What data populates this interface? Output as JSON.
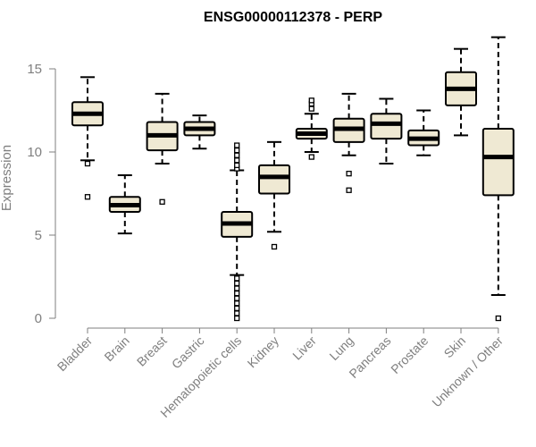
{
  "chart_data": {
    "type": "box",
    "title": "ENSG00000112378 - PERP",
    "ylabel": "Expression",
    "xlabel": "",
    "ylim": [
      0,
      16.8
    ],
    "yticks": [
      "0",
      "5",
      "10",
      "15"
    ],
    "box_fill": "#efe9d3",
    "categories": [
      "Bladder",
      "Brain",
      "Breast",
      "Gastric",
      "Hematopoietic cells",
      "Kidney",
      "Liver",
      "Lung",
      "Pancreas",
      "Prostate",
      "Skin",
      "Unknown / Other"
    ],
    "boxes": [
      {
        "name": "Bladder",
        "whisker_low": 9.5,
        "q1": 11.6,
        "median": 12.3,
        "q3": 13.0,
        "whisker_high": 14.5,
        "outliers": [
          7.3,
          9.3
        ]
      },
      {
        "name": "Brain",
        "whisker_low": 5.1,
        "q1": 6.4,
        "median": 6.8,
        "q3": 7.3,
        "whisker_high": 8.6,
        "outliers": []
      },
      {
        "name": "Breast",
        "whisker_low": 9.3,
        "q1": 10.1,
        "median": 11.0,
        "q3": 11.8,
        "whisker_high": 13.5,
        "outliers": [
          7.0
        ]
      },
      {
        "name": "Gastric",
        "whisker_low": 10.2,
        "q1": 11.0,
        "median": 11.4,
        "q3": 11.8,
        "whisker_high": 12.2,
        "outliers": []
      },
      {
        "name": "Hematopoietic cells",
        "whisker_low": 2.6,
        "q1": 4.9,
        "median": 5.7,
        "q3": 6.4,
        "whisker_high": 8.9,
        "outliers": [
          0.0,
          0.3,
          0.6,
          0.9,
          1.2,
          1.5,
          1.8,
          2.1,
          2.4,
          9.0,
          9.2,
          9.5,
          9.8,
          10.1,
          10.4
        ]
      },
      {
        "name": "Kidney",
        "whisker_low": 5.2,
        "q1": 7.5,
        "median": 8.5,
        "q3": 9.2,
        "whisker_high": 10.6,
        "outliers": [
          4.3
        ]
      },
      {
        "name": "Liver",
        "whisker_low": 10.0,
        "q1": 10.8,
        "median": 11.1,
        "q3": 11.4,
        "whisker_high": 12.3,
        "outliers": [
          9.7,
          12.6,
          12.9,
          13.1
        ]
      },
      {
        "name": "Lung",
        "whisker_low": 9.8,
        "q1": 10.6,
        "median": 11.4,
        "q3": 12.0,
        "whisker_high": 13.5,
        "outliers": [
          7.7,
          8.7
        ]
      },
      {
        "name": "Pancreas",
        "whisker_low": 9.3,
        "q1": 10.8,
        "median": 11.7,
        "q3": 12.3,
        "whisker_high": 13.2,
        "outliers": []
      },
      {
        "name": "Prostate",
        "whisker_low": 9.8,
        "q1": 10.4,
        "median": 10.8,
        "q3": 11.3,
        "whisker_high": 12.5,
        "outliers": []
      },
      {
        "name": "Skin",
        "whisker_low": 11.0,
        "q1": 12.8,
        "median": 13.8,
        "q3": 14.8,
        "whisker_high": 16.2,
        "outliers": []
      },
      {
        "name": "Unknown / Other",
        "whisker_low": 1.4,
        "q1": 7.4,
        "median": 9.7,
        "q3": 11.4,
        "whisker_high": 16.9,
        "outliers": [
          0.0
        ]
      }
    ]
  }
}
